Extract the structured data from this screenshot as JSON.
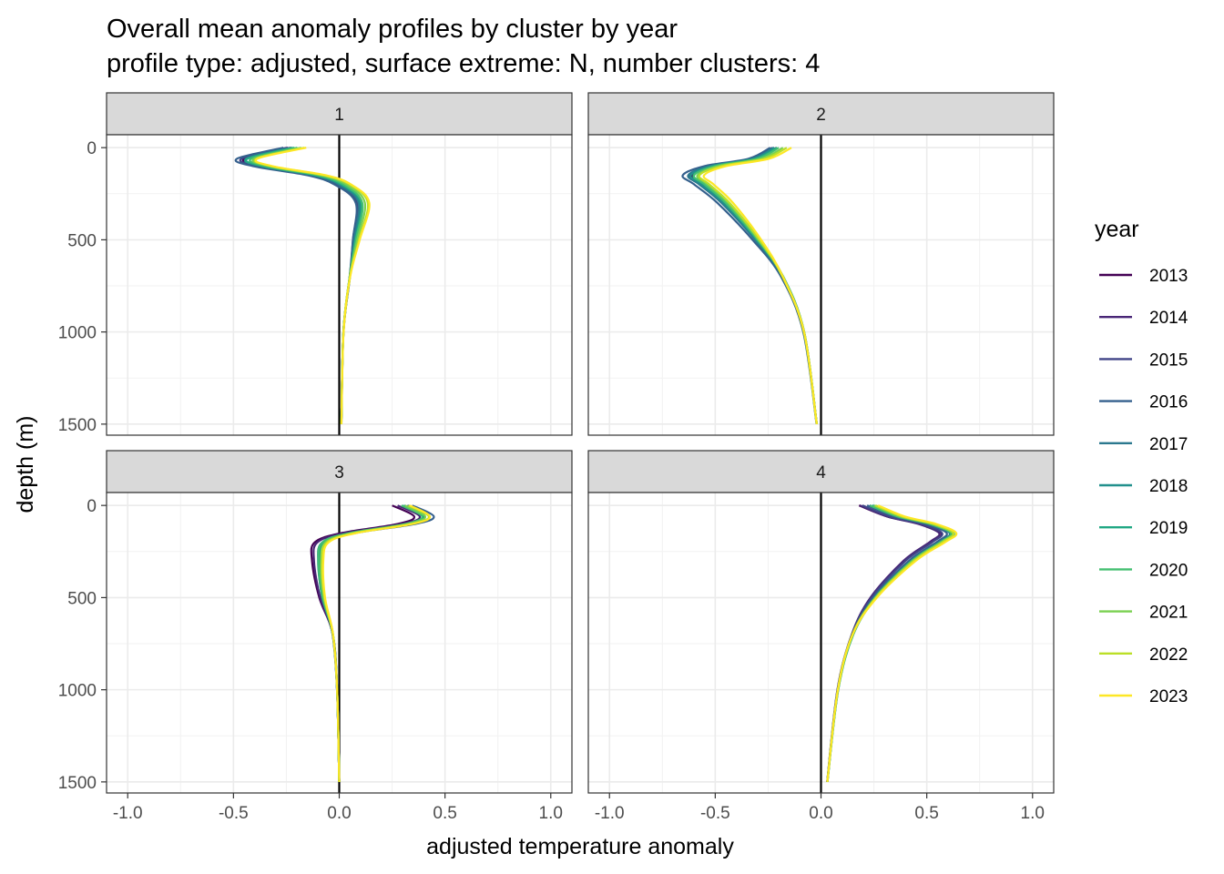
{
  "chart_data": {
    "type": "line",
    "title": "Overall mean anomaly profiles by cluster by year",
    "subtitle": "profile type: adjusted, surface extreme: N, number clusters: 4",
    "xlabel": "adjusted temperature anomaly",
    "ylabel": "depth (m)",
    "xlim": [
      -1.1,
      1.1
    ],
    "ylim": [
      1560,
      -70
    ],
    "y_reversed": true,
    "x_ticks": [
      -1.0,
      -0.5,
      0.0,
      0.5,
      1.0
    ],
    "x_tick_labels": [
      "-1.0",
      "-0.5",
      "0.0",
      "0.5",
      "1.0"
    ],
    "y_ticks": [
      0,
      500,
      1000,
      1500
    ],
    "y_tick_labels": [
      "0",
      "500",
      "1000",
      "1500"
    ],
    "grid": true,
    "reference_line_x": 0,
    "legend": {
      "title": "year",
      "position": "right",
      "entries": [
        "2013",
        "2014",
        "2015",
        "2016",
        "2017",
        "2018",
        "2019",
        "2020",
        "2021",
        "2022",
        "2023"
      ]
    },
    "colors": [
      "#440154",
      "#482576",
      "#414487",
      "#35608D",
      "#2A788E",
      "#21908C",
      "#22A884",
      "#43BF71",
      "#7AD151",
      "#BBDF27",
      "#FDE725"
    ],
    "depth": [
      0,
      60,
      100,
      150,
      200,
      300,
      500,
      700,
      1000,
      1500
    ],
    "panels": [
      {
        "label": "1",
        "base": [
          -0.2,
          -0.42,
          -0.35,
          -0.1,
          0.02,
          0.11,
          0.08,
          0.05,
          0.02,
          0.01
        ],
        "year_offsets": [
          -0.03,
          -0.04,
          -0.05,
          -0.06,
          -0.03,
          -0.02,
          -0.01,
          0.0,
          0.02,
          0.04,
          0.05
        ],
        "year_scales": [
          1.0,
          1.01,
          0.99,
          1.02,
          0.98,
          1.0,
          1.01,
          0.99,
          1.0,
          1.02,
          1.03
        ]
      },
      {
        "label": "2",
        "base": [
          -0.2,
          -0.3,
          -0.5,
          -0.6,
          -0.55,
          -0.45,
          -0.3,
          -0.18,
          -0.08,
          -0.02
        ],
        "year_offsets": [
          -0.01,
          -0.02,
          -0.03,
          -0.03,
          -0.02,
          -0.02,
          -0.01,
          0.0,
          0.02,
          0.04,
          0.06
        ],
        "year_scales": [
          1.0,
          1.01,
          1.0,
          1.05,
          1.02,
          1.0,
          0.99,
          1.0,
          1.0,
          1.01,
          1.0
        ]
      },
      {
        "label": "3",
        "base": [
          0.3,
          0.4,
          0.32,
          0.05,
          -0.08,
          -0.1,
          -0.08,
          -0.03,
          -0.01,
          0.0
        ],
        "year_offsets": [
          -0.05,
          -0.03,
          0.01,
          0.03,
          0.02,
          0.0,
          0.01,
          0.0,
          0.02,
          0.03,
          0.04
        ],
        "year_scales": [
          1.0,
          1.02,
          1.04,
          1.05,
          1.02,
          1.0,
          0.99,
          0.98,
          0.97,
          0.99,
          0.98
        ]
      },
      {
        "label": "4",
        "base": [
          0.22,
          0.35,
          0.5,
          0.6,
          0.55,
          0.42,
          0.25,
          0.15,
          0.08,
          0.03
        ],
        "year_offsets": [
          -0.04,
          -0.03,
          -0.02,
          0.0,
          0.01,
          0.02,
          0.02,
          0.01,
          0.03,
          0.04,
          0.05
        ],
        "year_scales": [
          1.0,
          0.97,
          0.98,
          0.99,
          1.0,
          1.01,
          1.02,
          1.01,
          1.0,
          0.99,
          1.0
        ]
      }
    ]
  }
}
